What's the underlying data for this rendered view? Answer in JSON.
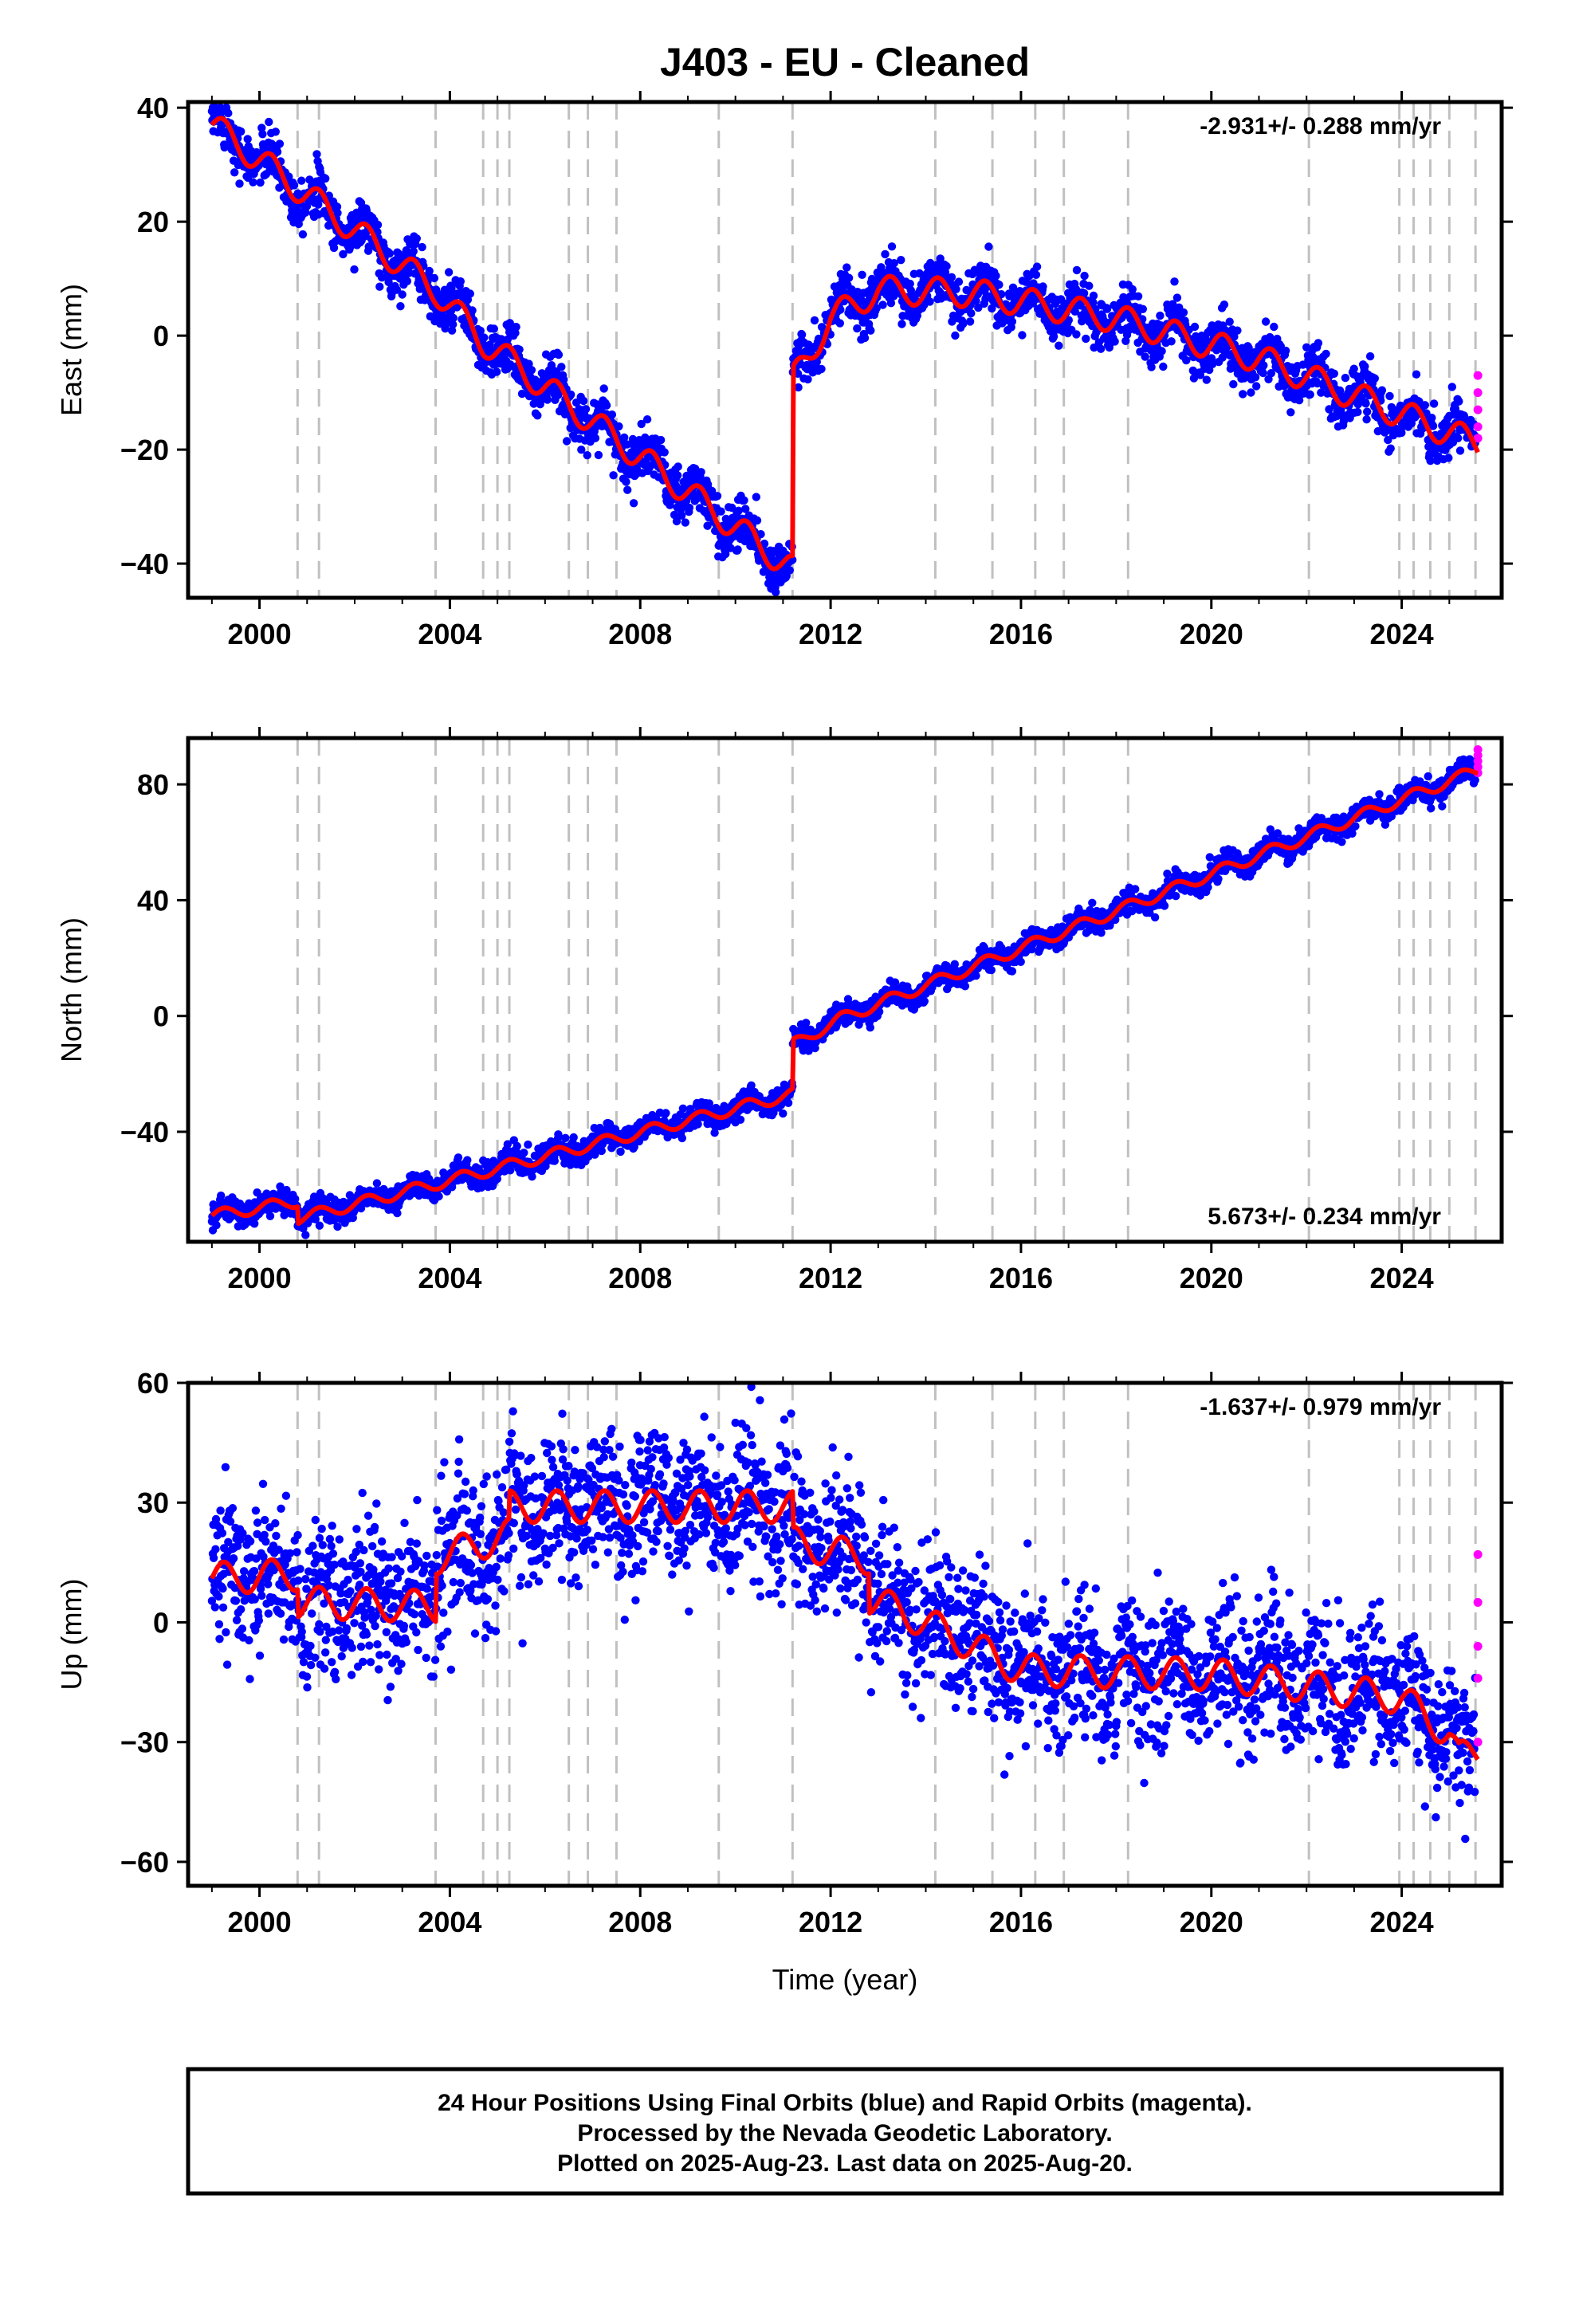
{
  "chart_data": {
    "title": "J403  - EU - Cleaned",
    "type": "scatter",
    "colors": {
      "final": "#0000ff",
      "rapid": "#ff00ff",
      "model": "#ff0000",
      "steps": "#c0c0c0",
      "axis": "#000000"
    },
    "xlabel": "Time (year)",
    "x_ticks": [
      2000,
      2004,
      2008,
      2012,
      2016,
      2020,
      2024
    ],
    "xlim": [
      1998.5,
      2026.1
    ],
    "step_epochs": [
      2000.8,
      2001.25,
      2003.7,
      2004.7,
      2005.0,
      2005.25,
      2006.5,
      2006.9,
      2007.5,
      2009.65,
      2011.2,
      2014.2,
      2015.4,
      2016.3,
      2016.9,
      2018.25,
      2022.05,
      2023.95,
      2024.25,
      2024.6,
      2025.0,
      2025.55
    ],
    "panels": [
      {
        "id": "east",
        "ylabel": "East (mm)",
        "ylim": [
          -46,
          41
        ],
        "y_ticks": [
          40,
          20,
          0,
          -20,
          -40
        ],
        "rate_text": "-2.931+/- 0.288 mm/yr",
        "rate_position": "top-right",
        "trend": [
          [
            1999.0,
            37
          ],
          [
            2003.7,
            8
          ],
          [
            2004.7,
            -1
          ],
          [
            2011.2,
            -41
          ],
          [
            2011.2,
            -8
          ],
          [
            2012.0,
            3
          ],
          [
            2013.0,
            8
          ],
          [
            2015.0,
            7.5
          ],
          [
            2018.0,
            3
          ],
          [
            2021.0,
            -4
          ],
          [
            2025.6,
            -19
          ]
        ],
        "seasonal_amp": 2.5,
        "scatter": 2.2,
        "rapid": [
          -7,
          -10,
          -13,
          -16,
          -18
        ]
      },
      {
        "id": "north",
        "ylabel": "North (mm)",
        "ylim": [
          -78,
          96
        ],
        "y_ticks": [
          80,
          40,
          0,
          -40
        ],
        "rate_text": "5.673+/- 0.234 mm/yr",
        "rate_position": "bottom-right",
        "trend": [
          [
            1999.0,
            -69
          ],
          [
            2000.8,
            -64
          ],
          [
            2000.8,
            -70
          ],
          [
            2011.2,
            -27
          ],
          [
            2011.2,
            -10
          ],
          [
            2012.2,
            -1
          ],
          [
            2025.6,
            85
          ]
        ],
        "seasonal_amp": 2.0,
        "scatter": 2.0,
        "rapid": [
          92,
          90,
          88,
          86,
          84
        ]
      },
      {
        "id": "up",
        "ylabel": "Up (mm)",
        "ylim": [
          -66,
          60
        ],
        "y_ticks": [
          60,
          30,
          0,
          -30,
          -60
        ],
        "rate_text": "-1.637+/- 0.979 mm/yr",
        "rate_position": "top-right",
        "trend": [
          [
            1999.0,
            11
          ],
          [
            2000.8,
            12
          ],
          [
            2000.8,
            5
          ],
          [
            2003.7,
            4
          ],
          [
            2003.7,
            16
          ],
          [
            2005.25,
            22
          ],
          [
            2005.25,
            29
          ],
          [
            2011.2,
            29
          ],
          [
            2011.2,
            20
          ],
          [
            2012.8,
            16
          ],
          [
            2012.8,
            6
          ],
          [
            2014.0,
            0
          ],
          [
            2016.0,
            -12
          ],
          [
            2020.0,
            -13
          ],
          [
            2024.0,
            -19
          ],
          [
            2025.0,
            -28
          ],
          [
            2025.2,
            -34
          ],
          [
            2025.6,
            -32
          ]
        ],
        "seasonal_amp": 4.0,
        "scatter": 9.0,
        "rapid": [
          17,
          5,
          -6,
          -14,
          -30
        ]
      }
    ]
  },
  "footer": {
    "line1": "24 Hour Positions Using Final Orbits (blue) and Rapid Orbits (magenta).",
    "line2": "Processed by the Nevada Geodetic Laboratory.",
    "line3": "Plotted on 2025-Aug-23. Last data on 2025-Aug-20."
  }
}
